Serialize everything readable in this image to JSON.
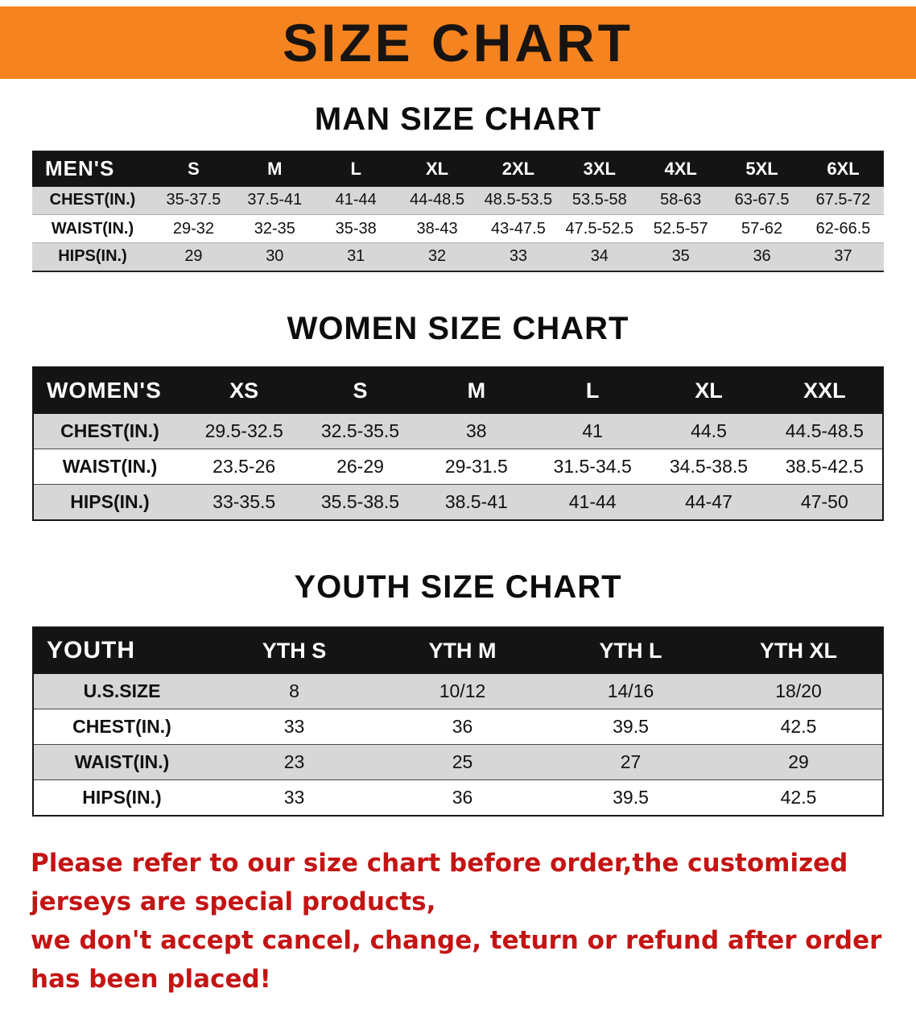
{
  "banner": {
    "title": "SIZE CHART",
    "bg_color": "#f5831f",
    "text_color": "#181411"
  },
  "sections": [
    {
      "id": "men",
      "heading": "MAN SIZE CHART",
      "table": {
        "name": "MEN'S",
        "columns": [
          "S",
          "M",
          "L",
          "XL",
          "2XL",
          "3XL",
          "4XL",
          "5XL",
          "6XL"
        ],
        "rows": [
          {
            "label": "CHEST(IN.)",
            "values": [
              "35-37.5",
              "37.5-41",
              "41-44",
              "44-48.5",
              "48.5-53.5",
              "53.5-58",
              "58-63",
              "63-67.5",
              "67.5-72"
            ]
          },
          {
            "label": "WAIST(IN.)",
            "values": [
              "29-32",
              "32-35",
              "35-38",
              "38-43",
              "43-47.5",
              "47.5-52.5",
              "52.5-57",
              "57-62",
              "62-66.5"
            ]
          },
          {
            "label": "HIPS(IN.)",
            "values": [
              "29",
              "30",
              "31",
              "32",
              "33",
              "34",
              "35",
              "36",
              "37"
            ]
          }
        ]
      }
    },
    {
      "id": "women",
      "heading": "WOMEN SIZE CHART",
      "table": {
        "name": "WOMEN'S",
        "columns": [
          "XS",
          "S",
          "M",
          "L",
          "XL",
          "XXL"
        ],
        "rows": [
          {
            "label": "CHEST(IN.)",
            "values": [
              "29.5-32.5",
              "32.5-35.5",
              "38",
              "41",
              "44.5",
              "44.5-48.5"
            ]
          },
          {
            "label": "WAIST(IN.)",
            "values": [
              "23.5-26",
              "26-29",
              "29-31.5",
              "31.5-34.5",
              "34.5-38.5",
              "38.5-42.5"
            ]
          },
          {
            "label": "HIPS(IN.)",
            "values": [
              "33-35.5",
              "35.5-38.5",
              "38.5-41",
              "41-44",
              "44-47",
              "47-50"
            ]
          }
        ]
      }
    },
    {
      "id": "youth",
      "heading": "YOUTH SIZE CHART",
      "table": {
        "name": "YOUTH",
        "columns": [
          "YTH S",
          "YTH M",
          "YTH L",
          "YTH XL"
        ],
        "rows": [
          {
            "label": "U.S.SIZE",
            "values": [
              "8",
              "10/12",
              "14/16",
              "18/20"
            ]
          },
          {
            "label": "CHEST(IN.)",
            "values": [
              "33",
              "36",
              "39.5",
              "42.5"
            ]
          },
          {
            "label": "WAIST(IN.)",
            "values": [
              "23",
              "25",
              "27",
              "29"
            ]
          },
          {
            "label": "HIPS(IN.)",
            "values": [
              "33",
              "36",
              "39.5",
              "42.5"
            ]
          }
        ]
      }
    }
  ],
  "disclaimer": {
    "line1": "Please refer to our size chart before order,the customized jerseys are special products,",
    "line2": "we don't accept cancel, change, teturn or refund after order has been placed!",
    "color": "#c41414"
  }
}
